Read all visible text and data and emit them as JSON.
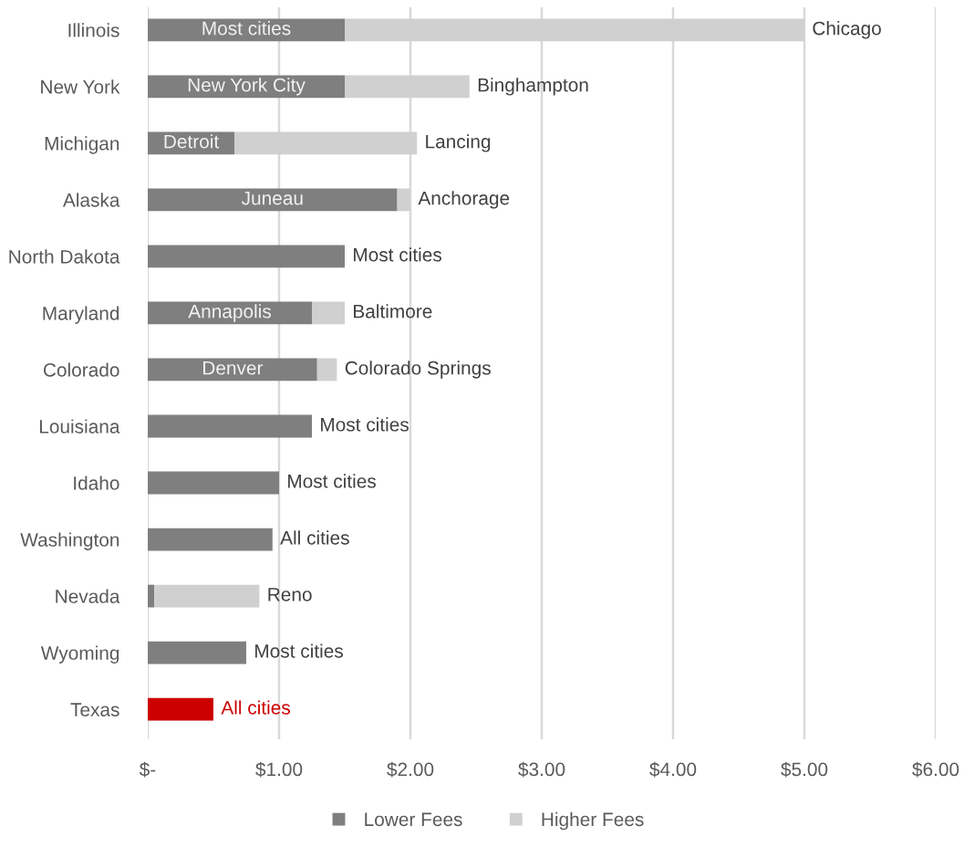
{
  "chart_data": {
    "type": "bar",
    "orientation": "horizontal",
    "stacked": true,
    "categories": [
      "Illinois",
      "New York",
      "Michigan",
      "Alaska",
      "North Dakota",
      "Maryland",
      "Colorado",
      "Louisiana",
      "Idaho",
      "Washington",
      "Nevada",
      "Wyoming",
      "Texas"
    ],
    "series": [
      {
        "name": "Lower Fees",
        "color": "#7f7f7f",
        "colors": [
          "#7f7f7f",
          "#7f7f7f",
          "#7f7f7f",
          "#7f7f7f",
          "#7f7f7f",
          "#7f7f7f",
          "#7f7f7f",
          "#7f7f7f",
          "#7f7f7f",
          "#7f7f7f",
          "#7f7f7f",
          "#7f7f7f",
          "#cc0000"
        ],
        "values": [
          1.5,
          1.5,
          0.66,
          1.9,
          1.5,
          1.25,
          1.29,
          1.25,
          1.0,
          0.95,
          0.05,
          0.75,
          0.5
        ],
        "value_labels": [
          "Most cities",
          "New York City",
          "Detroit",
          "Juneau",
          "Most cities",
          "Annapolis",
          "Denver",
          "Most cities",
          "Most cities",
          "All cities",
          null,
          "Most cities",
          "All cities"
        ]
      },
      {
        "name": "Higher Fees",
        "color": "#d0d0d0",
        "values": [
          3.5,
          0.95,
          1.39,
          0.1,
          null,
          0.25,
          0.15,
          null,
          null,
          null,
          0.8,
          null,
          null
        ],
        "value_labels": [
          "Chicago",
          "Binghampton",
          "Lancing",
          "Anchorage",
          null,
          "Baltimore",
          "Colorado Springs",
          null,
          null,
          null,
          "Reno",
          null,
          null
        ]
      }
    ],
    "xlim": [
      0,
      6
    ],
    "xticks": [
      {
        "value": 0,
        "label": "$-"
      },
      {
        "value": 1,
        "label": "$1.00"
      },
      {
        "value": 2,
        "label": "$2.00"
      },
      {
        "value": 3,
        "label": "$3.00"
      },
      {
        "value": 4,
        "label": "$4.00"
      },
      {
        "value": 5,
        "label": "$5.00"
      },
      {
        "value": 6,
        "label": "$6.00"
      }
    ],
    "grid": "x",
    "legend": "bottom"
  }
}
